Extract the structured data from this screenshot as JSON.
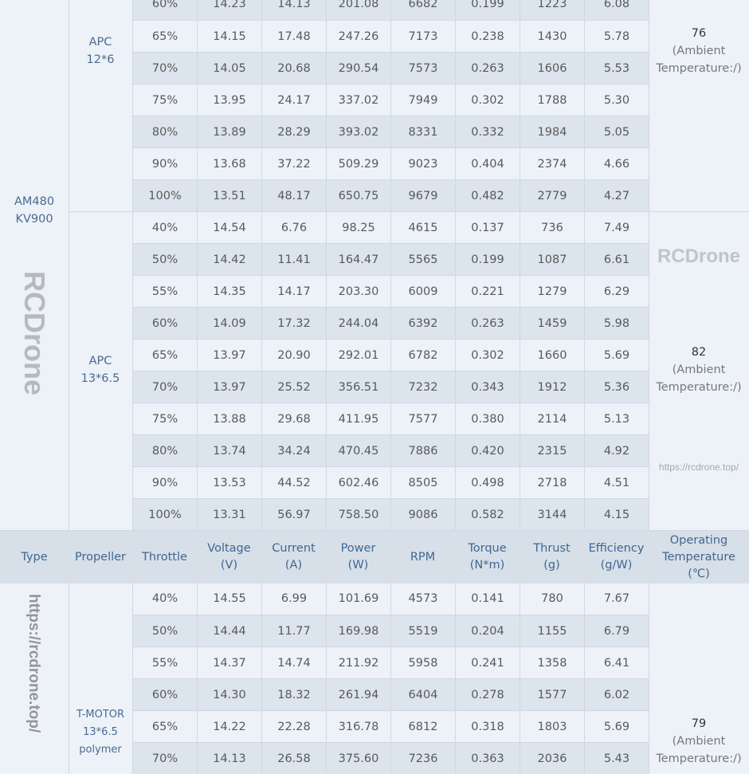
{
  "header": {
    "columns": [
      "Type",
      "Propeller",
      "Throttle",
      "Voltage\n(V)",
      "Current\n(A)",
      "Power\n(W)",
      "RPM",
      "Torque\n(N*m)",
      "Thrust\n(g)",
      "Efficiency\n(g/W)",
      "Operating\nTemperature\n(℃)"
    ]
  },
  "motor_type": "AM480\nKV900",
  "groups": [
    {
      "propeller": "APC\n12*6",
      "temp_value": "76",
      "temp_note": "(Ambient\nTemperature:/)",
      "rows": [
        [
          "60%",
          "14.23",
          "14.13",
          "201.08",
          "6682",
          "0.199",
          "1223",
          "6.08"
        ],
        [
          "65%",
          "14.15",
          "17.48",
          "247.26",
          "7173",
          "0.238",
          "1430",
          "5.78"
        ],
        [
          "70%",
          "14.05",
          "20.68",
          "290.54",
          "7573",
          "0.263",
          "1606",
          "5.53"
        ],
        [
          "75%",
          "13.95",
          "24.17",
          "337.02",
          "7949",
          "0.302",
          "1788",
          "5.30"
        ],
        [
          "80%",
          "13.89",
          "28.29",
          "393.02",
          "8331",
          "0.332",
          "1984",
          "5.05"
        ],
        [
          "90%",
          "13.68",
          "37.22",
          "509.29",
          "9023",
          "0.404",
          "2374",
          "4.66"
        ],
        [
          "100%",
          "13.51",
          "48.17",
          "650.75",
          "9679",
          "0.482",
          "2779",
          "4.27"
        ]
      ]
    },
    {
      "propeller": "APC\n13*6.5",
      "temp_value": "82",
      "temp_note": "(Ambient\nTemperature:/)",
      "rows": [
        [
          "40%",
          "14.54",
          "6.76",
          "98.25",
          "4615",
          "0.137",
          "736",
          "7.49"
        ],
        [
          "50%",
          "14.42",
          "11.41",
          "164.47",
          "5565",
          "0.199",
          "1087",
          "6.61"
        ],
        [
          "55%",
          "14.35",
          "14.17",
          "203.30",
          "6009",
          "0.221",
          "1279",
          "6.29"
        ],
        [
          "60%",
          "14.09",
          "17.32",
          "244.04",
          "6392",
          "0.263",
          "1459",
          "5.98"
        ],
        [
          "65%",
          "13.97",
          "20.90",
          "292.01",
          "6782",
          "0.302",
          "1660",
          "5.69"
        ],
        [
          "70%",
          "13.97",
          "25.52",
          "356.51",
          "7232",
          "0.343",
          "1912",
          "5.36"
        ],
        [
          "75%",
          "13.88",
          "29.68",
          "411.95",
          "7577",
          "0.380",
          "2114",
          "5.13"
        ],
        [
          "80%",
          "13.74",
          "34.24",
          "470.45",
          "7886",
          "0.420",
          "2315",
          "4.92"
        ],
        [
          "90%",
          "13.53",
          "44.52",
          "602.46",
          "8505",
          "0.498",
          "2718",
          "4.51"
        ],
        [
          "100%",
          "13.31",
          "56.97",
          "758.50",
          "9086",
          "0.582",
          "3144",
          "4.15"
        ]
      ]
    },
    {
      "propeller": "T-MOTOR\n13*6.5\npolymer",
      "temp_value": "79",
      "temp_note": "(Ambient\nTemperature:/)",
      "rows": [
        [
          "40%",
          "14.55",
          "6.99",
          "101.69",
          "4573",
          "0.141",
          "780",
          "7.67"
        ],
        [
          "50%",
          "14.44",
          "11.77",
          "169.98",
          "5519",
          "0.204",
          "1155",
          "6.79"
        ],
        [
          "55%",
          "14.37",
          "14.74",
          "211.92",
          "5958",
          "0.241",
          "1358",
          "6.41"
        ],
        [
          "60%",
          "14.30",
          "18.32",
          "261.94",
          "6404",
          "0.278",
          "1577",
          "6.02"
        ],
        [
          "65%",
          "14.22",
          "22.28",
          "316.78",
          "6812",
          "0.318",
          "1803",
          "5.69"
        ],
        [
          "70%",
          "14.13",
          "26.58",
          "375.60",
          "7236",
          "0.363",
          "2036",
          "5.43"
        ]
      ]
    }
  ],
  "watermarks": {
    "brand": "RCDrone",
    "url": "https://rcdrone.top/"
  }
}
